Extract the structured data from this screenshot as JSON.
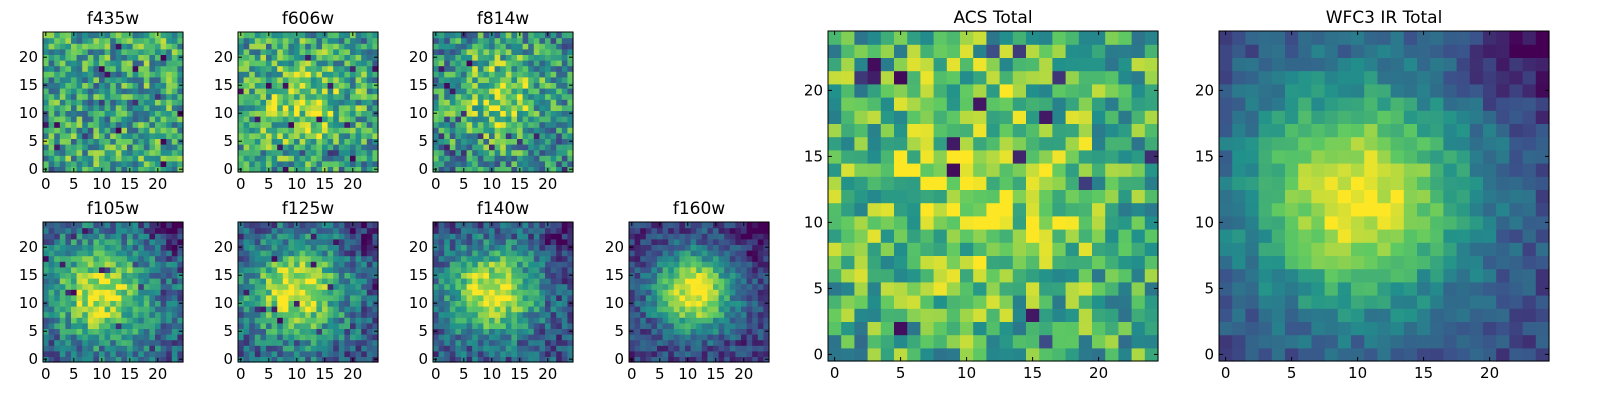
{
  "figure": {
    "colormap": "viridis",
    "colors": [
      "#440154",
      "#3b528b",
      "#21918c",
      "#5ec962",
      "#fde725"
    ]
  },
  "chart_data": [
    {
      "type": "heatmap",
      "title": "f435w",
      "grid_size": 25,
      "x_ticks": [
        0,
        5,
        10,
        15,
        20
      ],
      "y_ticks": [
        0,
        5,
        10,
        15,
        20
      ],
      "xlim": [
        -0.5,
        24.5
      ],
      "ylim": [
        -0.5,
        24.5
      ],
      "peak": [
        10,
        12
      ],
      "peak_level": 0.55,
      "extent": 7,
      "base_level": 0.62,
      "noise_level": 0.3,
      "dark_corner": "none"
    },
    {
      "type": "heatmap",
      "title": "f606w",
      "grid_size": 25,
      "x_ticks": [
        0,
        5,
        10,
        15,
        20
      ],
      "y_ticks": [
        0,
        5,
        10,
        15,
        20
      ],
      "xlim": [
        -0.5,
        24.5
      ],
      "ylim": [
        -0.5,
        24.5
      ],
      "peak": [
        11,
        12
      ],
      "peak_level": 0.8,
      "extent": 7,
      "base_level": 0.52,
      "noise_level": 0.3,
      "dark_corner": "none"
    },
    {
      "type": "heatmap",
      "title": "f814w",
      "grid_size": 25,
      "x_ticks": [
        0,
        5,
        10,
        15,
        20
      ],
      "y_ticks": [
        0,
        5,
        10,
        15,
        20
      ],
      "xlim": [
        -0.5,
        24.5
      ],
      "ylim": [
        -0.5,
        24.5
      ],
      "peak": [
        11,
        13
      ],
      "peak_level": 0.82,
      "extent": 6,
      "base_level": 0.48,
      "noise_level": 0.3,
      "dark_corner": "none"
    },
    {
      "type": "heatmap",
      "title": "f105w",
      "grid_size": 25,
      "x_ticks": [
        0,
        5,
        10,
        15,
        20
      ],
      "y_ticks": [
        0,
        5,
        10,
        15,
        20
      ],
      "xlim": [
        -0.5,
        24.5
      ],
      "ylim": [
        -0.5,
        24.5
      ],
      "peak": [
        10,
        12
      ],
      "peak_level": 0.95,
      "extent": 6,
      "base_level": 0.3,
      "noise_level": 0.22,
      "dark_corner": "top-right"
    },
    {
      "type": "heatmap",
      "title": "f125w",
      "grid_size": 25,
      "x_ticks": [
        0,
        5,
        10,
        15,
        20
      ],
      "y_ticks": [
        0,
        5,
        10,
        15,
        20
      ],
      "xlim": [
        -0.5,
        24.5
      ],
      "ylim": [
        -0.5,
        24.5
      ],
      "peak": [
        10,
        12
      ],
      "peak_level": 0.95,
      "extent": 6,
      "base_level": 0.28,
      "noise_level": 0.22,
      "dark_corner": "top-right"
    },
    {
      "type": "heatmap",
      "title": "f140w",
      "grid_size": 25,
      "x_ticks": [
        0,
        5,
        10,
        15,
        20
      ],
      "y_ticks": [
        0,
        5,
        10,
        15,
        20
      ],
      "xlim": [
        -0.5,
        24.5
      ],
      "ylim": [
        -0.5,
        24.5
      ],
      "peak": [
        10,
        12
      ],
      "peak_level": 1.0,
      "extent": 5.5,
      "base_level": 0.24,
      "noise_level": 0.2,
      "dark_corner": "top-right"
    },
    {
      "type": "heatmap",
      "title": "f160w",
      "grid_size": 25,
      "x_ticks": [
        0,
        5,
        10,
        15,
        20
      ],
      "y_ticks": [
        0,
        5,
        10,
        15,
        20
      ],
      "xlim": [
        -0.5,
        24.5
      ],
      "ylim": [
        -0.5,
        24.5
      ],
      "peak": [
        11,
        12
      ],
      "peak_level": 1.0,
      "extent": 5,
      "base_level": 0.18,
      "noise_level": 0.16,
      "dark_corner": "top-right"
    },
    {
      "type": "heatmap",
      "title": "ACS Total",
      "grid_size": 25,
      "x_ticks": [
        0,
        5,
        10,
        15,
        20
      ],
      "y_ticks": [
        0,
        5,
        10,
        15,
        20
      ],
      "xlim": [
        -0.5,
        24.5
      ],
      "ylim": [
        -0.5,
        24.5
      ],
      "peak": [
        11,
        13
      ],
      "peak_level": 0.85,
      "extent": 7,
      "base_level": 0.6,
      "noise_level": 0.28,
      "dark_corner": "none"
    },
    {
      "type": "heatmap",
      "title": "WFC3 IR Total",
      "grid_size": 25,
      "x_ticks": [
        0,
        5,
        10,
        15,
        20
      ],
      "y_ticks": [
        0,
        5,
        10,
        15,
        20
      ],
      "xlim": [
        -0.5,
        24.5
      ],
      "ylim": [
        -0.5,
        24.5
      ],
      "peak": [
        10,
        12
      ],
      "peak_level": 1.0,
      "extent": 6,
      "base_level": 0.22,
      "noise_level": 0.1,
      "dark_corner": "top-right"
    }
  ]
}
